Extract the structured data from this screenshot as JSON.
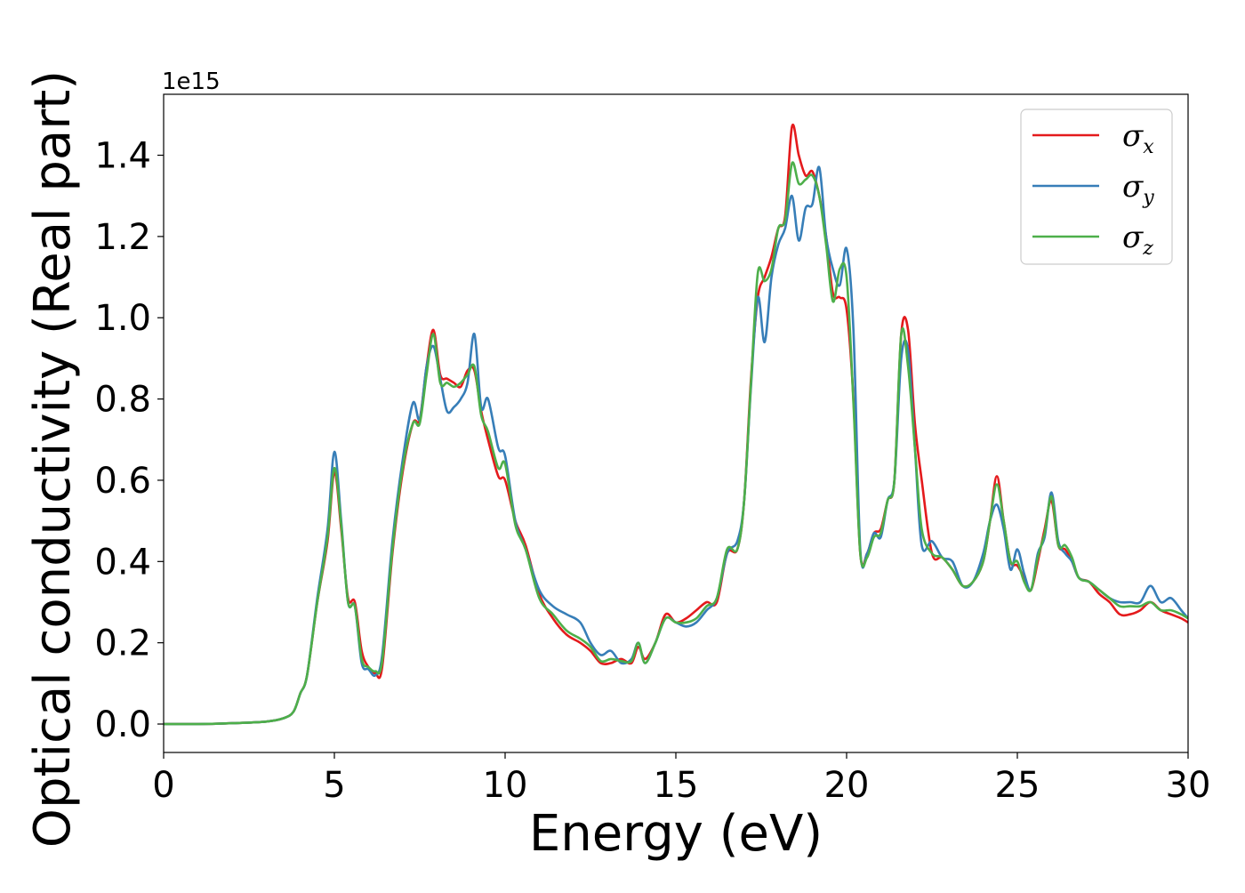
{
  "chart_data": {
    "type": "line",
    "xlabel": "Energy (eV)",
    "ylabel": "Optical conductivity (Real part)",
    "y_offset_label": "1e15",
    "xlim": [
      0,
      30
    ],
    "ylim": [
      -0.07,
      1.55
    ],
    "xticks": [
      0,
      5,
      10,
      15,
      20,
      25,
      30
    ],
    "xtick_labels": [
      "0",
      "5",
      "10",
      "15",
      "20",
      "25",
      "30"
    ],
    "yticks": [
      0.0,
      0.2,
      0.4,
      0.6,
      0.8,
      1.0,
      1.2,
      1.4
    ],
    "ytick_labels": [
      "0.0",
      "0.2",
      "0.4",
      "0.6",
      "0.8",
      "1.0",
      "1.2",
      "1.4"
    ],
    "grid": false,
    "legend_position": "top-right",
    "series": [
      {
        "name": "σx",
        "legend_symbol": "σ",
        "legend_subscript": "x",
        "color": "#e41a1c",
        "x": [
          0,
          1,
          2,
          3,
          3.5,
          3.8,
          4.0,
          4.2,
          4.5,
          4.8,
          5.0,
          5.2,
          5.4,
          5.6,
          5.8,
          6.0,
          6.2,
          6.4,
          6.7,
          7.0,
          7.3,
          7.5,
          7.7,
          7.9,
          8.1,
          8.3,
          8.5,
          8.7,
          8.9,
          9.1,
          9.3,
          9.5,
          9.8,
          10.0,
          10.3,
          10.6,
          11.0,
          11.4,
          11.8,
          12.2,
          12.5,
          12.8,
          13.1,
          13.4,
          13.7,
          13.9,
          14.1,
          14.4,
          14.7,
          15.0,
          15.3,
          15.6,
          15.9,
          16.2,
          16.5,
          16.8,
          17.0,
          17.2,
          17.4,
          17.6,
          17.8,
          18.0,
          18.2,
          18.4,
          18.6,
          18.8,
          19.0,
          19.2,
          19.4,
          19.6,
          19.8,
          20.0,
          20.2,
          20.4,
          20.6,
          20.8,
          21.0,
          21.2,
          21.4,
          21.6,
          21.8,
          22.0,
          22.2,
          22.5,
          22.8,
          23.1,
          23.4,
          23.7,
          24.0,
          24.2,
          24.4,
          24.6,
          24.8,
          25.0,
          25.2,
          25.4,
          25.6,
          25.8,
          26.0,
          26.2,
          26.4,
          26.6,
          26.8,
          27.1,
          27.4,
          27.7,
          28.0,
          28.3,
          28.6,
          28.9,
          29.2,
          29.5,
          29.8,
          30.0
        ],
        "values": [
          0.0,
          0.0,
          0.002,
          0.006,
          0.014,
          0.03,
          0.075,
          0.12,
          0.3,
          0.45,
          0.62,
          0.48,
          0.31,
          0.3,
          0.18,
          0.14,
          0.125,
          0.14,
          0.42,
          0.62,
          0.74,
          0.75,
          0.88,
          0.97,
          0.86,
          0.85,
          0.84,
          0.83,
          0.87,
          0.87,
          0.77,
          0.7,
          0.61,
          0.6,
          0.5,
          0.44,
          0.32,
          0.26,
          0.22,
          0.2,
          0.18,
          0.15,
          0.15,
          0.16,
          0.15,
          0.19,
          0.16,
          0.2,
          0.27,
          0.25,
          0.26,
          0.28,
          0.3,
          0.3,
          0.42,
          0.43,
          0.55,
          0.85,
          1.05,
          1.1,
          1.15,
          1.22,
          1.25,
          1.47,
          1.4,
          1.35,
          1.36,
          1.3,
          1.2,
          1.06,
          1.05,
          1.02,
          0.8,
          0.42,
          0.42,
          0.47,
          0.48,
          0.55,
          0.6,
          0.96,
          0.97,
          0.74,
          0.6,
          0.42,
          0.41,
          0.38,
          0.34,
          0.35,
          0.4,
          0.5,
          0.61,
          0.5,
          0.4,
          0.39,
          0.36,
          0.33,
          0.4,
          0.48,
          0.55,
          0.44,
          0.43,
          0.4,
          0.36,
          0.35,
          0.32,
          0.3,
          0.27,
          0.27,
          0.28,
          0.3,
          0.28,
          0.27,
          0.26,
          0.25
        ]
      },
      {
        "name": "σy",
        "legend_symbol": "σ",
        "legend_subscript": "y",
        "color": "#377eb8",
        "x": [
          0,
          1,
          2,
          3,
          3.5,
          3.8,
          4.0,
          4.2,
          4.5,
          4.8,
          5.0,
          5.2,
          5.4,
          5.6,
          5.8,
          6.0,
          6.2,
          6.4,
          6.7,
          7.0,
          7.3,
          7.5,
          7.7,
          7.9,
          8.1,
          8.3,
          8.5,
          8.7,
          8.9,
          9.1,
          9.3,
          9.5,
          9.8,
          10.0,
          10.3,
          10.6,
          11.0,
          11.4,
          11.8,
          12.2,
          12.5,
          12.8,
          13.1,
          13.4,
          13.7,
          13.9,
          14.1,
          14.4,
          14.7,
          15.0,
          15.3,
          15.6,
          15.9,
          16.2,
          16.5,
          16.8,
          17.0,
          17.2,
          17.4,
          17.6,
          17.8,
          18.0,
          18.2,
          18.4,
          18.6,
          18.8,
          19.0,
          19.2,
          19.4,
          19.6,
          19.8,
          20.0,
          20.2,
          20.4,
          20.6,
          20.8,
          21.0,
          21.2,
          21.4,
          21.6,
          21.8,
          22.0,
          22.2,
          22.5,
          22.8,
          23.1,
          23.4,
          23.7,
          24.0,
          24.2,
          24.4,
          24.6,
          24.8,
          25.0,
          25.2,
          25.4,
          25.6,
          25.8,
          26.0,
          26.2,
          26.4,
          26.6,
          26.8,
          27.1,
          27.4,
          27.7,
          28.0,
          28.3,
          28.6,
          28.9,
          29.2,
          29.5,
          29.8,
          30.0
        ],
        "values": [
          0.0,
          0.0,
          0.002,
          0.006,
          0.014,
          0.03,
          0.075,
          0.12,
          0.31,
          0.48,
          0.67,
          0.5,
          0.3,
          0.29,
          0.15,
          0.135,
          0.12,
          0.17,
          0.45,
          0.65,
          0.79,
          0.75,
          0.88,
          0.93,
          0.85,
          0.77,
          0.78,
          0.8,
          0.84,
          0.96,
          0.78,
          0.8,
          0.68,
          0.66,
          0.5,
          0.43,
          0.33,
          0.29,
          0.27,
          0.25,
          0.2,
          0.17,
          0.18,
          0.15,
          0.16,
          0.2,
          0.15,
          0.2,
          0.26,
          0.25,
          0.24,
          0.25,
          0.28,
          0.31,
          0.42,
          0.45,
          0.55,
          0.83,
          1.05,
          0.94,
          1.1,
          1.18,
          1.22,
          1.3,
          1.19,
          1.27,
          1.28,
          1.37,
          1.2,
          1.12,
          1.08,
          1.17,
          0.97,
          0.43,
          0.42,
          0.47,
          0.46,
          0.55,
          0.6,
          0.9,
          0.92,
          0.68,
          0.44,
          0.45,
          0.41,
          0.4,
          0.34,
          0.35,
          0.42,
          0.5,
          0.54,
          0.48,
          0.38,
          0.43,
          0.37,
          0.33,
          0.42,
          0.46,
          0.57,
          0.45,
          0.42,
          0.4,
          0.36,
          0.35,
          0.33,
          0.31,
          0.3,
          0.3,
          0.3,
          0.34,
          0.3,
          0.31,
          0.28,
          0.26
        ]
      },
      {
        "name": "σz",
        "legend_symbol": "σ",
        "legend_subscript": "z",
        "color": "#4daf4a",
        "x": [
          0,
          1,
          2,
          3,
          3.5,
          3.8,
          4.0,
          4.2,
          4.5,
          4.8,
          5.0,
          5.2,
          5.4,
          5.6,
          5.8,
          6.0,
          6.2,
          6.4,
          6.7,
          7.0,
          7.3,
          7.5,
          7.7,
          7.9,
          8.1,
          8.3,
          8.5,
          8.7,
          8.9,
          9.1,
          9.3,
          9.5,
          9.8,
          10.0,
          10.3,
          10.6,
          11.0,
          11.4,
          11.8,
          12.2,
          12.5,
          12.8,
          13.1,
          13.4,
          13.7,
          13.9,
          14.1,
          14.4,
          14.7,
          15.0,
          15.3,
          15.6,
          15.9,
          16.2,
          16.5,
          16.8,
          17.0,
          17.2,
          17.4,
          17.6,
          17.8,
          18.0,
          18.2,
          18.4,
          18.6,
          18.8,
          19.0,
          19.2,
          19.4,
          19.6,
          19.8,
          20.0,
          20.2,
          20.4,
          20.6,
          20.8,
          21.0,
          21.2,
          21.4,
          21.6,
          21.8,
          22.0,
          22.2,
          22.5,
          22.8,
          23.1,
          23.4,
          23.7,
          24.0,
          24.2,
          24.4,
          24.6,
          24.8,
          25.0,
          25.2,
          25.4,
          25.6,
          25.8,
          26.0,
          26.2,
          26.4,
          26.6,
          26.8,
          27.1,
          27.4,
          27.7,
          28.0,
          28.3,
          28.6,
          28.9,
          29.2,
          29.5,
          29.8,
          30.0
        ],
        "values": [
          0.0,
          0.0,
          0.002,
          0.006,
          0.014,
          0.03,
          0.075,
          0.12,
          0.3,
          0.46,
          0.63,
          0.49,
          0.3,
          0.29,
          0.16,
          0.14,
          0.13,
          0.155,
          0.43,
          0.63,
          0.74,
          0.74,
          0.86,
          0.96,
          0.84,
          0.84,
          0.83,
          0.84,
          0.86,
          0.88,
          0.76,
          0.72,
          0.63,
          0.64,
          0.49,
          0.43,
          0.31,
          0.27,
          0.23,
          0.21,
          0.19,
          0.155,
          0.16,
          0.155,
          0.155,
          0.2,
          0.15,
          0.2,
          0.26,
          0.25,
          0.25,
          0.26,
          0.29,
          0.31,
          0.43,
          0.43,
          0.55,
          0.84,
          1.11,
          1.09,
          1.12,
          1.22,
          1.24,
          1.38,
          1.33,
          1.34,
          1.35,
          1.3,
          1.18,
          1.04,
          1.12,
          1.1,
          0.79,
          0.42,
          0.41,
          0.46,
          0.47,
          0.55,
          0.6,
          0.96,
          0.88,
          0.68,
          0.48,
          0.42,
          0.41,
          0.38,
          0.34,
          0.35,
          0.4,
          0.5,
          0.59,
          0.5,
          0.4,
          0.4,
          0.35,
          0.33,
          0.41,
          0.47,
          0.56,
          0.44,
          0.44,
          0.41,
          0.36,
          0.35,
          0.33,
          0.31,
          0.29,
          0.29,
          0.29,
          0.3,
          0.28,
          0.28,
          0.27,
          0.26
        ]
      }
    ]
  }
}
